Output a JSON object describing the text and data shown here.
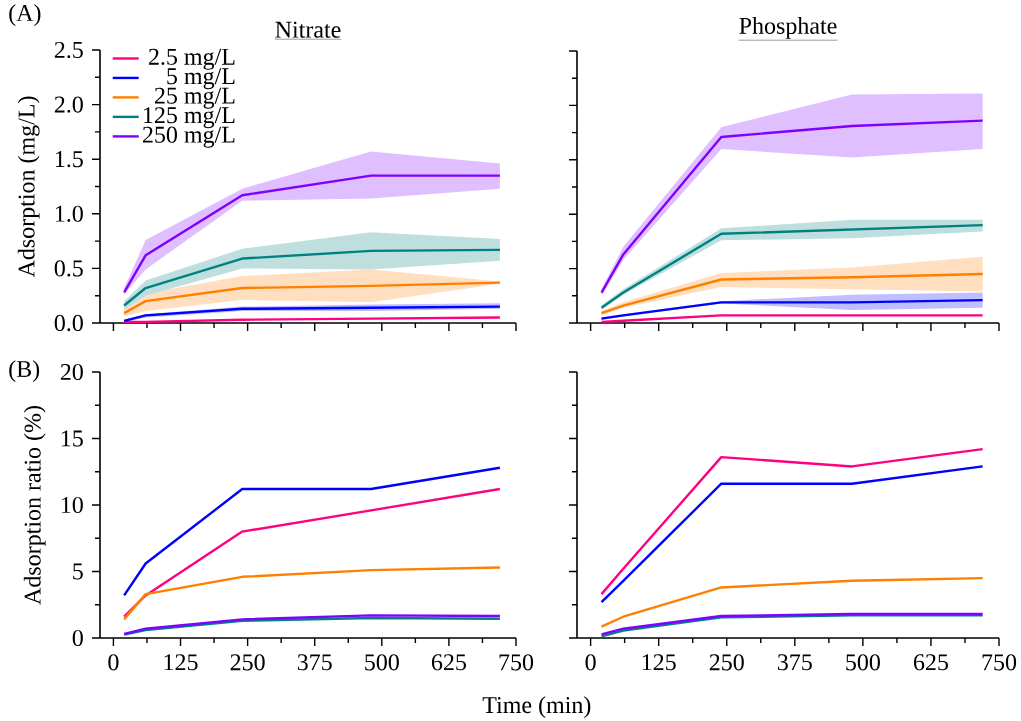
{
  "chart_data": [
    {
      "type": "line",
      "title": "Nitrate",
      "ylabel": "Adsorption (mg/L)",
      "annotations": [
        "(A)"
      ],
      "x": [
        20,
        60,
        240,
        480,
        720
      ],
      "xlim": [
        -25,
        750
      ],
      "xticks": [
        0,
        125,
        250,
        375,
        500,
        625,
        750
      ],
      "ylim": [
        0,
        2.5
      ],
      "yticks": [
        {
          "value": 0,
          "label": "0.0"
        },
        0.5,
        {
          "value": 1,
          "label": "1.0"
        },
        1.5,
        {
          "value": 2,
          "label": "2.0"
        },
        2.5
      ],
      "tick_labels": "y",
      "legend": "top left",
      "marker": "none",
      "line_style": "solid",
      "series": [
        {
          "name": "2.5 mg/L",
          "color": "#ff0080",
          "values": [
            0.01,
            0.01,
            0.03,
            0.04,
            0.05
          ]
        },
        {
          "name": "5 mg/L",
          "color": "#0000ff",
          "values": [
            0.02,
            0.07,
            0.13,
            0.14,
            0.15
          ],
          "lower": [
            0.01,
            0.05,
            0.11,
            0.11,
            0.13
          ],
          "upper": [
            0.03,
            0.08,
            0.15,
            0.17,
            0.18
          ]
        },
        {
          "name": "25 mg/L",
          "color": "#ff8000",
          "values": [
            0.09,
            0.2,
            0.32,
            0.34,
            0.37
          ],
          "lower": [
            0.06,
            0.11,
            0.21,
            0.19,
            0.36
          ],
          "upper": [
            0.12,
            0.27,
            0.43,
            0.49,
            0.38
          ]
        },
        {
          "name": "125 mg/L",
          "color": "#008080",
          "values": [
            0.16,
            0.32,
            0.59,
            0.66,
            0.67
          ],
          "lower": [
            0.12,
            0.25,
            0.5,
            0.49,
            0.57
          ],
          "upper": [
            0.2,
            0.39,
            0.68,
            0.83,
            0.77
          ]
        },
        {
          "name": "250 mg/L",
          "color": "#8000ff",
          "values": [
            0.28,
            0.62,
            1.17,
            1.35,
            1.35
          ],
          "lower": [
            0.26,
            0.49,
            1.12,
            1.14,
            1.23
          ],
          "upper": [
            0.32,
            0.76,
            1.23,
            1.57,
            1.46
          ]
        }
      ]
    },
    {
      "type": "line",
      "title": "Phosphate",
      "x": [
        20,
        60,
        240,
        480,
        720
      ],
      "xlim": [
        -25,
        750
      ],
      "xticks": [
        0,
        125,
        250,
        375,
        500,
        625,
        750
      ],
      "ylim": [
        0,
        2.5
      ],
      "yticks": [
        0,
        0.5,
        1,
        1.5,
        2,
        2.5
      ],
      "tick_labels": false,
      "marker": "none",
      "line_style": "solid",
      "series": [
        {
          "color": "#ff0080",
          "values": [
            0.01,
            0.02,
            0.07,
            0.07,
            0.07
          ]
        },
        {
          "color": "#0000ff",
          "values": [
            0.04,
            0.07,
            0.19,
            0.19,
            0.21
          ],
          "lower": [
            0.03,
            0.06,
            0.18,
            0.12,
            0.14
          ],
          "upper": [
            0.05,
            0.08,
            0.2,
            0.26,
            0.28
          ]
        },
        {
          "color": "#ff8000",
          "values": [
            0.09,
            0.16,
            0.4,
            0.42,
            0.45
          ],
          "lower": [
            0.07,
            0.14,
            0.33,
            0.31,
            0.29
          ],
          "upper": [
            0.11,
            0.19,
            0.46,
            0.51,
            0.61
          ]
        },
        {
          "color": "#008080",
          "values": [
            0.14,
            0.28,
            0.82,
            0.86,
            0.9
          ],
          "lower": [
            0.12,
            0.26,
            0.76,
            0.78,
            0.84
          ],
          "upper": [
            0.16,
            0.31,
            0.87,
            0.95,
            0.95
          ]
        },
        {
          "color": "#8000ff",
          "values": [
            0.28,
            0.63,
            1.71,
            1.81,
            1.86
          ],
          "lower": [
            0.25,
            0.58,
            1.6,
            1.52,
            1.6
          ],
          "upper": [
            0.31,
            0.7,
            1.8,
            2.1,
            2.11
          ]
        }
      ]
    },
    {
      "type": "line",
      "ylabel": "Adsorption ratio (%)",
      "xlabel": "Time (min)",
      "annotations": [
        "(B)"
      ],
      "x": [
        20,
        60,
        240,
        480,
        720
      ],
      "xlim": [
        -25,
        750
      ],
      "xticks": [
        0,
        125,
        250,
        375,
        500,
        625,
        750
      ],
      "ylim": [
        0,
        20
      ],
      "yticks": [
        0,
        5,
        10,
        15,
        20
      ],
      "marker": "none",
      "line_style": "solid",
      "series": [
        {
          "color": "#ff0080",
          "values": [
            1.6,
            3.2,
            8.0,
            9.6,
            11.2
          ]
        },
        {
          "color": "#0000ff",
          "values": [
            3.2,
            5.6,
            11.2,
            11.2,
            12.8
          ]
        },
        {
          "color": "#ff8000",
          "values": [
            1.4,
            3.3,
            4.6,
            5.1,
            5.3
          ]
        },
        {
          "color": "#008080",
          "values": [
            0.25,
            0.6,
            1.3,
            1.5,
            1.45
          ]
        },
        {
          "color": "#8000ff",
          "values": [
            0.3,
            0.7,
            1.4,
            1.7,
            1.65
          ]
        }
      ]
    },
    {
      "type": "line",
      "x": [
        20,
        60,
        240,
        480,
        720
      ],
      "xlim": [
        -25,
        750
      ],
      "xticks": [
        0,
        125,
        250,
        375,
        500,
        625,
        750
      ],
      "ylim": [
        0,
        20
      ],
      "yticks": [
        0,
        5,
        10,
        15,
        20
      ],
      "tick_labels": "x",
      "marker": "none",
      "line_style": "solid",
      "series": [
        {
          "color": "#ff0080",
          "values": [
            3.3,
            5.2,
            13.6,
            12.9,
            14.2
          ]
        },
        {
          "color": "#0000ff",
          "values": [
            2.7,
            4.3,
            11.6,
            11.6,
            12.9
          ]
        },
        {
          "color": "#ff8000",
          "values": [
            0.85,
            1.6,
            3.8,
            4.3,
            4.5
          ]
        },
        {
          "color": "#008080",
          "values": [
            0.12,
            0.55,
            1.55,
            1.7,
            1.7
          ]
        },
        {
          "color": "#8000ff",
          "values": [
            0.27,
            0.7,
            1.65,
            1.8,
            1.8
          ]
        }
      ]
    }
  ]
}
